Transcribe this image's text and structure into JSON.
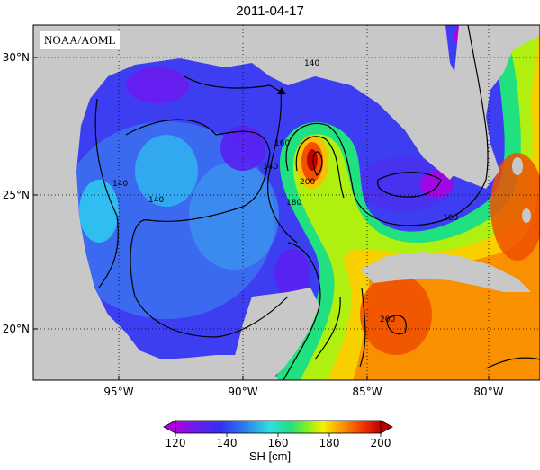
{
  "title": "2011-04-17",
  "credit": "NOAA/AOML",
  "colorbar": {
    "label": "SH [cm]",
    "ticks": [
      "120",
      "140",
      "160",
      "180",
      "200"
    ],
    "colors": [
      "#b000e0",
      "#6a1cf0",
      "#3030f0",
      "#2a60f0",
      "#20a0f0",
      "#30e0e0",
      "#20e080",
      "#40f020",
      "#b0f010",
      "#f8f000",
      "#f8c000",
      "#f89000",
      "#f05000",
      "#e01010",
      "#c00000"
    ]
  },
  "axes": {
    "lon_labels": [
      "95°W",
      "90°W",
      "85°W",
      "80°W"
    ],
    "lat_labels": [
      "30°N",
      "25°N",
      "20°N"
    ]
  },
  "contour_labels": [
    "140",
    "140",
    "140",
    "140",
    "160",
    "160",
    "180",
    "200",
    "200",
    "160",
    "180"
  ],
  "colors": {
    "land": "#c8c8c8",
    "ocean_low": "#5a20f0",
    "loop_current": "#ff4000"
  }
}
